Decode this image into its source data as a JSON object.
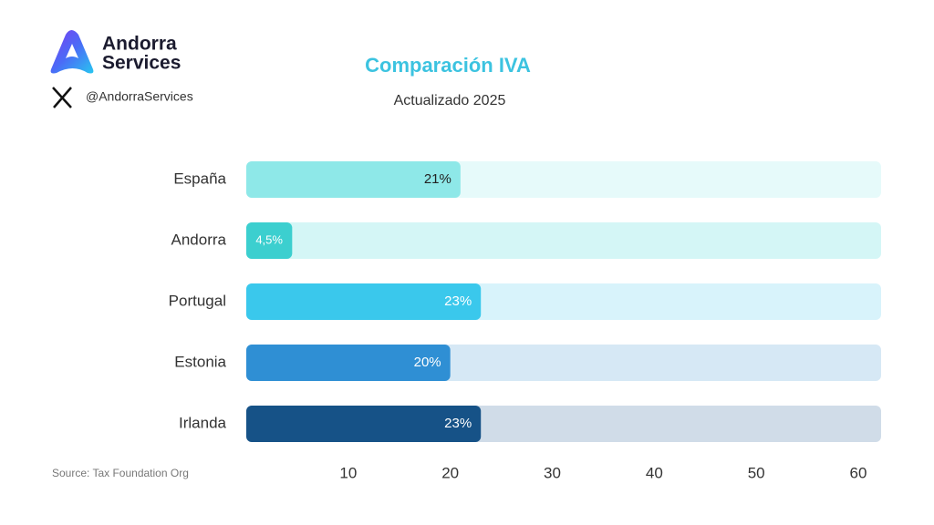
{
  "header": {
    "brand": [
      "Andorra",
      "Services"
    ],
    "handle": "@AndorraServices"
  },
  "chart_data": {
    "type": "hbar",
    "title": "Comparación IVA",
    "subtitle": "Actualizado 2025",
    "categories": [
      "España",
      "Andorra",
      "Portugal",
      "Estonia",
      "Irlanda"
    ],
    "values": [
      21,
      4.5,
      23,
      20,
      23
    ],
    "value_labels": [
      "21%",
      "4,5%",
      "23%",
      "20%",
      "23%"
    ],
    "colors": [
      "#8ee8e8",
      "#3ccfcf",
      "#3ac8ec",
      "#2f8fd4",
      "#165287"
    ],
    "track_colors": [
      "#e6fafa",
      "#d4f6f6",
      "#d8f3fb",
      "#d6e8f5",
      "#d0dce8"
    ],
    "xlim": [
      0,
      60
    ],
    "xticks": [
      10,
      20,
      30,
      40,
      50,
      60
    ],
    "source": "Source: Tax Foundation Org"
  }
}
